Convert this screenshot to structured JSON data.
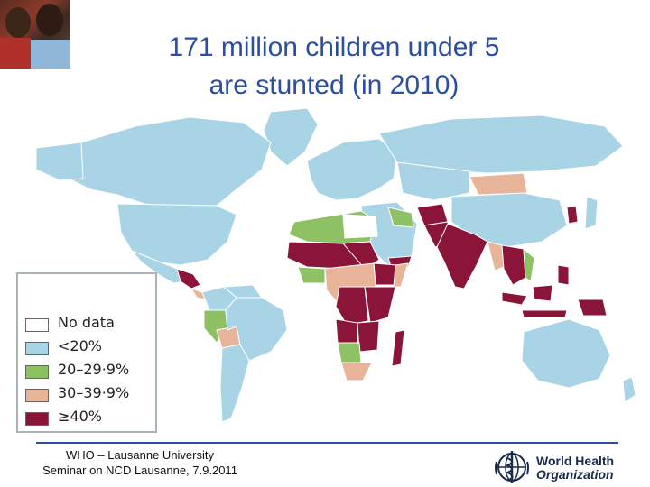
{
  "title": {
    "line1": "171 million children under 5",
    "line2": "are stunted (in 2010)"
  },
  "legend": {
    "items": [
      {
        "label": "No data",
        "color": "#ffffff"
      },
      {
        "label": "<20%",
        "color": "#a8d4e6"
      },
      {
        "label": "20–29·9%",
        "color": "#8ec163"
      },
      {
        "label": "30–39·9%",
        "color": "#e8b49a"
      },
      {
        "label": "≥40%",
        "color": "#8a1538"
      }
    ]
  },
  "footer": {
    "line1": "WHO – Lausanne University",
    "line2": "Seminar on NCD Lausanne, 7.9.2011"
  },
  "logo": {
    "line1": "World Health",
    "line2": "Organization",
    "icon": "who-emblem-icon"
  },
  "colors": {
    "title": "#2a4ea0",
    "ocean": "#ffffff",
    "low": "#a8d4e6",
    "medium": "#8ec163",
    "high": "#e8b49a",
    "very_high": "#8a1538",
    "no_data": "#ffffff"
  }
}
